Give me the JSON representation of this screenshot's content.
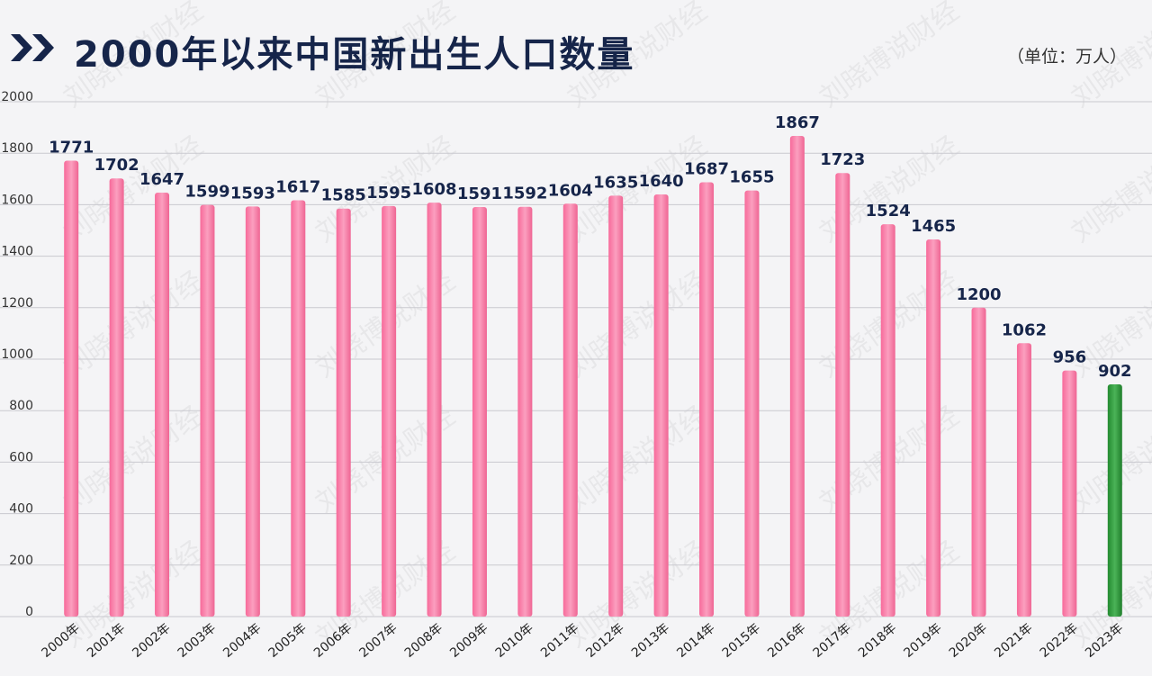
{
  "header": {
    "title": "2000年以来中国新出生人口数量",
    "unit": "（单位：万人）"
  },
  "watermark": "刘晓博说财经",
  "colors": {
    "bar": "#f47ca6",
    "highlight": "#2f9a3c",
    "title": "#16254a"
  },
  "chart_data": {
    "type": "bar",
    "title": "2000年以来中国新出生人口数量",
    "unit": "（单位：万人）",
    "categories": [
      "2000年",
      "2001年",
      "2002年",
      "2003年",
      "2004年",
      "2005年",
      "2006年",
      "2007年",
      "2008年",
      "2009年",
      "2010年",
      "2011年",
      "2012年",
      "2013年",
      "2014年",
      "2015年",
      "2016年",
      "2017年",
      "2018年",
      "2019年",
      "2020年",
      "2021年",
      "2022年",
      "2023年"
    ],
    "values": [
      1771,
      1702,
      1647,
      1599,
      1593,
      1617,
      1585,
      1595,
      1608,
      1591,
      1592,
      1604,
      1635,
      1640,
      1687,
      1655,
      1867,
      1723,
      1524,
      1465,
      1200,
      1062,
      956,
      902
    ],
    "highlight_index": 23,
    "ylim": [
      0,
      2000
    ],
    "yticks": [
      0,
      200,
      400,
      600,
      800,
      1000,
      1200,
      1400,
      1600,
      1800,
      2000
    ],
    "grid": true,
    "legend": "none"
  }
}
